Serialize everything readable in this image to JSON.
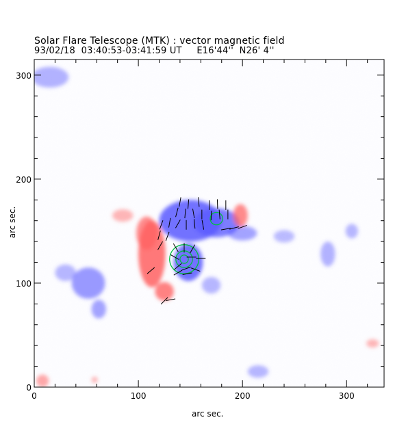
{
  "chart_data": {
    "type": "heatmap",
    "title": "Solar Flare Telescope (MTK) : vector magnetic field",
    "subtitle": "93/02/18  03:40:53-03:41:59 UT     E16'44''  N26' 4''",
    "xlabel": "arc sec.",
    "ylabel": "arc sec.",
    "xlim": [
      0,
      336
    ],
    "ylim": [
      0,
      315
    ],
    "x_ticks": [
      0,
      100,
      200,
      300
    ],
    "y_ticks": [
      0,
      100,
      200,
      300
    ],
    "grid": false,
    "colors": {
      "positive_polarity": "#ff6060",
      "negative_polarity": "#5a5aff",
      "contour": "#00c040",
      "vectors": "#000000"
    },
    "regions": [
      {
        "polarity": "negative",
        "cx": 150,
        "cy": 160,
        "rx": 30,
        "ry": 20,
        "strength": 1.0
      },
      {
        "polarity": "negative",
        "cx": 175,
        "cy": 158,
        "rx": 22,
        "ry": 14,
        "strength": 0.9
      },
      {
        "polarity": "negative",
        "cx": 148,
        "cy": 120,
        "rx": 14,
        "ry": 18,
        "strength": 1.0
      },
      {
        "polarity": "negative",
        "cx": 200,
        "cy": 148,
        "rx": 14,
        "ry": 7,
        "strength": 0.5
      },
      {
        "polarity": "negative",
        "cx": 52,
        "cy": 100,
        "rx": 16,
        "ry": 15,
        "strength": 0.6
      },
      {
        "polarity": "negative",
        "cx": 62,
        "cy": 75,
        "rx": 7,
        "ry": 9,
        "strength": 0.5
      },
      {
        "polarity": "negative",
        "cx": 30,
        "cy": 110,
        "rx": 10,
        "ry": 8,
        "strength": 0.3
      },
      {
        "polarity": "negative",
        "cx": 15,
        "cy": 298,
        "rx": 18,
        "ry": 10,
        "strength": 0.35
      },
      {
        "polarity": "negative",
        "cx": 215,
        "cy": 15,
        "rx": 10,
        "ry": 6,
        "strength": 0.3
      },
      {
        "polarity": "negative",
        "cx": 282,
        "cy": 128,
        "rx": 7,
        "ry": 12,
        "strength": 0.35
      },
      {
        "polarity": "negative",
        "cx": 305,
        "cy": 150,
        "rx": 6,
        "ry": 7,
        "strength": 0.3
      },
      {
        "polarity": "negative",
        "cx": 240,
        "cy": 145,
        "rx": 10,
        "ry": 6,
        "strength": 0.25
      },
      {
        "polarity": "negative",
        "cx": 170,
        "cy": 98,
        "rx": 9,
        "ry": 8,
        "strength": 0.3
      },
      {
        "polarity": "positive",
        "cx": 113,
        "cy": 128,
        "rx": 13,
        "ry": 32,
        "strength": 1.0
      },
      {
        "polarity": "positive",
        "cx": 108,
        "cy": 148,
        "rx": 10,
        "ry": 16,
        "strength": 0.8
      },
      {
        "polarity": "positive",
        "cx": 125,
        "cy": 92,
        "rx": 9,
        "ry": 9,
        "strength": 0.9
      },
      {
        "polarity": "positive",
        "cx": 85,
        "cy": 165,
        "rx": 10,
        "ry": 6,
        "strength": 0.35
      },
      {
        "polarity": "positive",
        "cx": 198,
        "cy": 165,
        "rx": 7,
        "ry": 11,
        "strength": 0.8
      },
      {
        "polarity": "positive",
        "cx": 325,
        "cy": 42,
        "rx": 6,
        "ry": 4,
        "strength": 0.35
      },
      {
        "polarity": "positive",
        "cx": 8,
        "cy": 6,
        "rx": 6,
        "ry": 6,
        "strength": 0.5
      },
      {
        "polarity": "positive",
        "cx": 58,
        "cy": 7,
        "rx": 3,
        "ry": 3,
        "strength": 0.35
      }
    ],
    "vectors": [
      {
        "x": 140,
        "y": 178,
        "angle": 80
      },
      {
        "x": 148,
        "y": 176,
        "angle": 85
      },
      {
        "x": 158,
        "y": 178,
        "angle": 95
      },
      {
        "x": 168,
        "y": 175,
        "angle": 90
      },
      {
        "x": 176,
        "y": 176,
        "angle": 92
      },
      {
        "x": 184,
        "y": 175,
        "angle": 90
      },
      {
        "x": 137,
        "y": 168,
        "angle": 75
      },
      {
        "x": 145,
        "y": 167,
        "angle": 85
      },
      {
        "x": 153,
        "y": 167,
        "angle": 100
      },
      {
        "x": 161,
        "y": 166,
        "angle": 90
      },
      {
        "x": 170,
        "y": 165,
        "angle": 88
      },
      {
        "x": 178,
        "y": 166,
        "angle": 95
      },
      {
        "x": 186,
        "y": 166,
        "angle": 90
      },
      {
        "x": 122,
        "y": 156,
        "angle": 70
      },
      {
        "x": 130,
        "y": 158,
        "angle": 80
      },
      {
        "x": 138,
        "y": 157,
        "angle": 60
      },
      {
        "x": 146,
        "y": 156,
        "angle": 90
      },
      {
        "x": 154,
        "y": 157,
        "angle": 95
      },
      {
        "x": 162,
        "y": 156,
        "angle": 100
      },
      {
        "x": 184,
        "y": 152,
        "angle": 10
      },
      {
        "x": 192,
        "y": 153,
        "angle": 15
      },
      {
        "x": 200,
        "y": 154,
        "angle": 20
      },
      {
        "x": 120,
        "y": 146,
        "angle": 75
      },
      {
        "x": 128,
        "y": 145,
        "angle": 70
      },
      {
        "x": 121,
        "y": 136,
        "angle": 60
      },
      {
        "x": 136,
        "y": 134,
        "angle": 120
      },
      {
        "x": 144,
        "y": 134,
        "angle": 90
      },
      {
        "x": 152,
        "y": 133,
        "angle": 60
      },
      {
        "x": 135,
        "y": 125,
        "angle": 150
      },
      {
        "x": 151,
        "y": 125,
        "angle": 0
      },
      {
        "x": 160,
        "y": 124,
        "angle": 0
      },
      {
        "x": 138,
        "y": 116,
        "angle": 40
      },
      {
        "x": 146,
        "y": 114,
        "angle": 20
      },
      {
        "x": 155,
        "y": 113,
        "angle": -20
      },
      {
        "x": 138,
        "y": 110,
        "angle": 30
      },
      {
        "x": 147,
        "y": 109,
        "angle": 10
      },
      {
        "x": 112,
        "y": 112,
        "angle": 40
      },
      {
        "x": 125,
        "y": 83,
        "angle": 45
      },
      {
        "x": 131,
        "y": 84,
        "angle": 10
      }
    ],
    "contours": [
      {
        "x": 144,
        "y": 123,
        "r": [
          4,
          8,
          14
        ]
      },
      {
        "x": 175,
        "y": 162,
        "r": [
          6
        ]
      }
    ]
  }
}
